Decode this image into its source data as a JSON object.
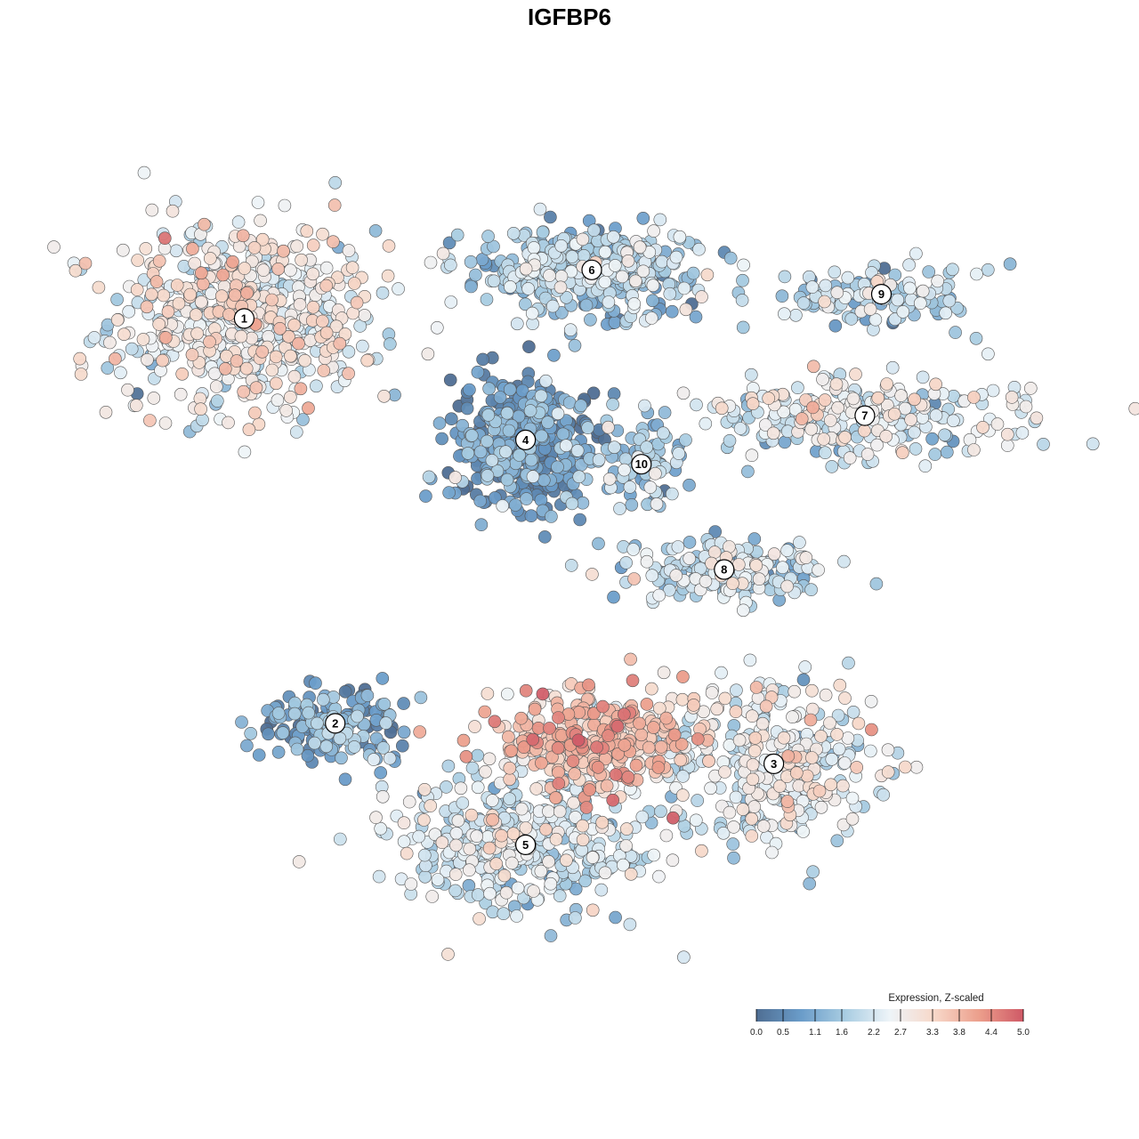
{
  "chart_data": {
    "type": "scatter",
    "title": "IGFBP6",
    "xlabel": "",
    "ylabel": "",
    "grid": false,
    "color_scale": {
      "title": "Expression, Z-scaled",
      "min": 0.0,
      "max": 5.0,
      "ticks": [
        "0.0",
        "0.5",
        "1.1",
        "1.6",
        "2.2",
        "2.7",
        "3.3",
        "3.8",
        "4.4",
        "5.0"
      ],
      "colors": [
        "#4f6e93",
        "#6a9cc9",
        "#a9cde2",
        "#eef4f8",
        "#f7d8c9",
        "#ec9f8c",
        "#cf5966"
      ],
      "legend_position": "bottom-right"
    },
    "clusters": [
      {
        "label": "1",
        "center": [
          0.08,
          0.81
        ],
        "spread": [
          0.16,
          0.12
        ],
        "count": 620,
        "mean_expr": 2.6
      },
      {
        "label": "2",
        "center": [
          0.19,
          0.31
        ],
        "spread": [
          0.1,
          0.05
        ],
        "count": 160,
        "mean_expr": 1.0
      },
      {
        "label": "3",
        "center": [
          0.72,
          0.26
        ],
        "spread": [
          0.12,
          0.1
        ],
        "count": 360,
        "mean_expr": 2.4
      },
      {
        "label": "4",
        "center": [
          0.42,
          0.66
        ],
        "spread": [
          0.09,
          0.08
        ],
        "count": 420,
        "mean_expr": 0.7
      },
      {
        "label": "5",
        "center": [
          0.42,
          0.16
        ],
        "spread": [
          0.16,
          0.09
        ],
        "count": 420,
        "mean_expr": 2.1
      },
      {
        "label": "6",
        "center": [
          0.5,
          0.87
        ],
        "spread": [
          0.14,
          0.05
        ],
        "count": 420,
        "mean_expr": 1.6
      },
      {
        "label": "7",
        "center": [
          0.83,
          0.69
        ],
        "spread": [
          0.2,
          0.05
        ],
        "count": 260,
        "mean_expr": 2.2
      },
      {
        "label": "8",
        "center": [
          0.66,
          0.5
        ],
        "spread": [
          0.12,
          0.04
        ],
        "count": 190,
        "mean_expr": 2.0
      },
      {
        "label": "9",
        "center": [
          0.85,
          0.84
        ],
        "spread": [
          0.12,
          0.04
        ],
        "count": 130,
        "mean_expr": 1.8
      },
      {
        "label": "10",
        "center": [
          0.56,
          0.63
        ],
        "spread": [
          0.05,
          0.06
        ],
        "count": 80,
        "mean_expr": 1.6
      },
      {
        "label": "",
        "center": [
          0.5,
          0.29
        ],
        "spread": [
          0.13,
          0.06
        ],
        "count": 320,
        "mean_expr": 3.6
      }
    ]
  }
}
